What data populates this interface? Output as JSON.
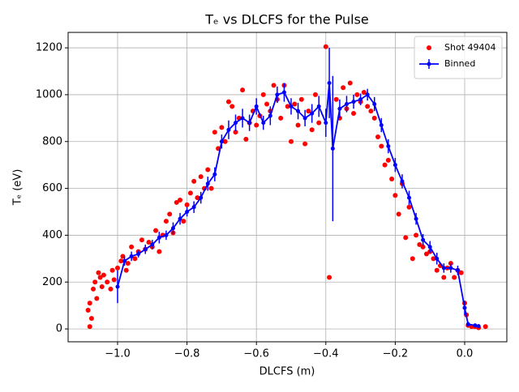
{
  "chart_data": {
    "type": "scatter",
    "title": "Tₑ vs DLCFS for the Pulse",
    "x_label": "DLCFS (m)",
    "y_label": "Tₑ (eV)",
    "xlim": [
      -1.1425,
      0.1215
    ],
    "ylim": [
      -55,
      1266
    ],
    "xticks": [
      {
        "value": -1,
        "label": "−1.0"
      },
      {
        "value": -0.8,
        "label": "−0.8"
      },
      {
        "value": -0.6,
        "label": "−0.6"
      },
      {
        "value": -0.4,
        "label": "−0.4"
      },
      {
        "value": -0.2,
        "label": "−0.2"
      },
      {
        "value": 0,
        "label": "0.0"
      }
    ],
    "yticks": [
      0,
      200,
      400,
      600,
      800,
      1000,
      1200
    ],
    "grid": true,
    "legend": "upper right",
    "series": [
      {
        "name": "Shot 49404",
        "color": "#ff0000",
        "kind": "scatter",
        "x": [
          -1.085,
          -1.08,
          -1.075,
          -1.08,
          -1.07,
          -1.065,
          -1.06,
          -1.055,
          -1.05,
          -1.045,
          -1.04,
          -1.03,
          -1.02,
          -1.015,
          -1.01,
          -1.0,
          -0.99,
          -0.985,
          -0.975,
          -0.97,
          -0.96,
          -0.95,
          -0.94,
          -0.93,
          -0.92,
          -0.91,
          -0.9,
          -0.89,
          -0.88,
          -0.87,
          -0.86,
          -0.85,
          -0.84,
          -0.83,
          -0.82,
          -0.81,
          -0.8,
          -0.79,
          -0.78,
          -0.77,
          -0.76,
          -0.75,
          -0.74,
          -0.73,
          -0.72,
          -0.71,
          -0.7,
          -0.69,
          -0.68,
          -0.67,
          -0.66,
          -0.65,
          -0.64,
          -0.63,
          -0.62,
          -0.61,
          -0.6,
          -0.59,
          -0.58,
          -0.57,
          -0.56,
          -0.55,
          -0.54,
          -0.53,
          -0.52,
          -0.51,
          -0.5,
          -0.49,
          -0.48,
          -0.47,
          -0.46,
          -0.45,
          -0.44,
          -0.43,
          -0.42,
          -0.4,
          -0.39,
          -0.37,
          -0.36,
          -0.35,
          -0.34,
          -0.33,
          -0.32,
          -0.31,
          -0.3,
          -0.29,
          -0.28,
          -0.27,
          -0.26,
          -0.25,
          -0.24,
          -0.23,
          -0.22,
          -0.21,
          -0.2,
          -0.19,
          -0.18,
          -0.17,
          -0.16,
          -0.15,
          -0.14,
          -0.13,
          -0.12,
          -0.11,
          -0.1,
          -0.09,
          -0.08,
          -0.07,
          -0.06,
          -0.05,
          -0.04,
          -0.03,
          -0.02,
          -0.01,
          0.0,
          0.005,
          0.01,
          0.02,
          0.03,
          0.04,
          0.06
        ],
        "values": [
          80,
          10,
          45,
          110,
          170,
          200,
          130,
          240,
          220,
          180,
          230,
          200,
          170,
          250,
          210,
          260,
          290,
          310,
          250,
          280,
          350,
          300,
          330,
          380,
          340,
          370,
          350,
          420,
          330,
          400,
          460,
          490,
          410,
          540,
          550,
          460,
          530,
          580,
          630,
          560,
          650,
          600,
          680,
          600,
          840,
          770,
          860,
          800,
          970,
          950,
          840,
          900,
          1020,
          810,
          880,
          930,
          870,
          910,
          1000,
          960,
          930,
          1040,
          980,
          900,
          1040,
          950,
          800,
          960,
          870,
          980,
          790,
          930,
          850,
          1000,
          880,
          1205,
          220,
          980,
          900,
          1030,
          940,
          1050,
          920,
          1000,
          970,
          1010,
          950,
          930,
          900,
          820,
          780,
          700,
          720,
          640,
          570,
          490,
          620,
          390,
          520,
          300,
          400,
          360,
          350,
          320,
          330,
          300,
          250,
          270,
          220,
          260,
          280,
          220,
          250,
          240,
          110,
          60,
          15,
          10,
          10,
          5,
          10
        ]
      },
      {
        "name": "Binned",
        "color": "#0000ff",
        "kind": "errorbar",
        "x": [
          -1.0,
          -0.98,
          -0.96,
          -0.94,
          -0.92,
          -0.9,
          -0.88,
          -0.86,
          -0.84,
          -0.82,
          -0.8,
          -0.78,
          -0.76,
          -0.74,
          -0.72,
          -0.7,
          -0.68,
          -0.66,
          -0.64,
          -0.62,
          -0.6,
          -0.58,
          -0.56,
          -0.54,
          -0.52,
          -0.5,
          -0.48,
          -0.46,
          -0.44,
          -0.42,
          -0.4,
          -0.39,
          -0.38,
          -0.36,
          -0.34,
          -0.32,
          -0.3,
          -0.28,
          -0.26,
          -0.24,
          -0.22,
          -0.2,
          -0.18,
          -0.16,
          -0.14,
          -0.12,
          -0.1,
          -0.08,
          -0.06,
          -0.04,
          -0.02,
          0.0,
          0.01,
          0.03,
          0.04
        ],
        "values": [
          180,
          290,
          310,
          320,
          340,
          360,
          390,
          400,
          430,
          470,
          500,
          520,
          560,
          620,
          660,
          800,
          850,
          880,
          900,
          880,
          950,
          880,
          910,
          1000,
          1010,
          950,
          930,
          900,
          920,
          950,
          880,
          1050,
          770,
          940,
          960,
          970,
          980,
          1000,
          960,
          870,
          780,
          700,
          630,
          560,
          470,
          380,
          350,
          300,
          260,
          260,
          250,
          90,
          20,
          15,
          12
        ],
        "errors": [
          70,
          20,
          20,
          15,
          20,
          20,
          25,
          20,
          25,
          25,
          20,
          25,
          25,
          30,
          30,
          30,
          40,
          35,
          40,
          35,
          35,
          30,
          40,
          35,
          40,
          35,
          35,
          35,
          40,
          45,
          60,
          150,
          310,
          40,
          35,
          30,
          25,
          25,
          30,
          30,
          30,
          30,
          30,
          30,
          25,
          25,
          25,
          25,
          20,
          20,
          20,
          30,
          10,
          8,
          6
        ]
      }
    ]
  }
}
